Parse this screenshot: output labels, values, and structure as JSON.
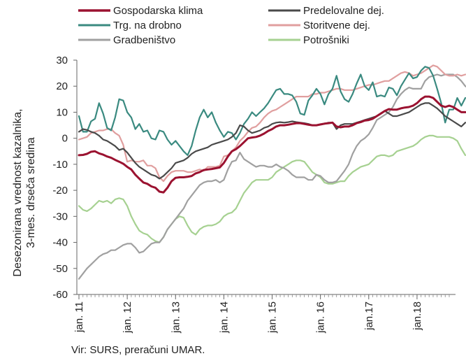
{
  "source_note": "Vir: SURS, preračuni UMAR.",
  "chart_data": {
    "type": "line",
    "ylabel": [
      "Desezonirana vrednost kazalnika,",
      "3-mes. drseča sredina"
    ],
    "xlabel": "",
    "ylim": [
      -60,
      30
    ],
    "yticks": [
      30,
      20,
      10,
      0,
      -10,
      -20,
      -30,
      -40,
      -50,
      -60
    ],
    "x_start": "2011-01",
    "x_end": "2018-09",
    "xticks": [
      {
        "label": "jan. 11",
        "date": "2011-01"
      },
      {
        "label": "jan. 12",
        "date": "2012-01"
      },
      {
        "label": "jan. 13",
        "date": "2013-01"
      },
      {
        "label": "jan. 14",
        "date": "2014-01"
      },
      {
        "label": "jan. 15",
        "date": "2015-01"
      },
      {
        "label": "jan. 16",
        "date": "2016-01"
      },
      {
        "label": "jan.17",
        "date": "2017-01"
      },
      {
        "label": "jan.18",
        "date": "2018-01"
      }
    ],
    "grid": false,
    "legend_position": "top",
    "series": [
      {
        "name": "Gospodarska klima",
        "color": "#9b1230",
        "values": [
          -6.5,
          -6.4,
          -6,
          -5.2,
          -5,
          -5.8,
          -6.3,
          -7,
          -7.5,
          -8.3,
          -9,
          -9.8,
          -11,
          -12,
          -14,
          -15.5,
          -17,
          -17.5,
          -18.5,
          -19,
          -20.5,
          -20.8,
          -19,
          -16.5,
          -15.2,
          -15,
          -15,
          -14.8,
          -14.5,
          -13.5,
          -13,
          -12.2,
          -12,
          -11.8,
          -11.5,
          -11.2,
          -9.5,
          -7,
          -5,
          -4.2,
          -3,
          -1.5,
          0,
          0.3,
          0.5,
          1,
          1.8,
          2.8,
          3.5,
          4.5,
          5,
          5,
          5.2,
          5.5,
          5.8,
          5.8,
          5.5,
          5.2,
          5,
          5,
          5.3,
          5.6,
          5.8,
          6,
          4.5,
          4.2,
          4.5,
          4.5,
          5,
          5.8,
          6.2,
          6.8,
          7,
          7.5,
          8.5,
          9.5,
          10.5,
          11.2,
          11,
          11,
          11.5,
          11.8,
          12,
          12.5,
          13.5,
          15,
          16,
          16,
          15.5,
          14,
          12.5,
          12,
          12.5,
          12,
          11,
          10,
          10
        ]
      },
      {
        "name": "Predelovalne dej.",
        "color": "#4a4a4a",
        "values": [
          2.5,
          3.5,
          3.2,
          2.5,
          2,
          1,
          -0.5,
          -1,
          -2,
          -3,
          -4.5,
          -4,
          -5.5,
          -7.5,
          -9.5,
          -11,
          -12,
          -13,
          -14,
          -14.5,
          -15.5,
          -14.5,
          -13,
          -11.5,
          -9.5,
          -9,
          -8.5,
          -7.5,
          -6,
          -5,
          -4.5,
          -4,
          -3.5,
          -2.5,
          -2,
          -1.5,
          -1,
          -0.5,
          0.5,
          2,
          5,
          4.5,
          3,
          2,
          2.5,
          3,
          4,
          4.5,
          5.5,
          6,
          6.2,
          6,
          6.2,
          6.5,
          6.2,
          6,
          5.8,
          5.5,
          5,
          5,
          5.2,
          5.5,
          6,
          6,
          3.5,
          5,
          5.5,
          5.5,
          5.5,
          6,
          6.5,
          7,
          7.5,
          8,
          8.5,
          9.5,
          10.5,
          9.5,
          8.5,
          8.5,
          9,
          9.5,
          10,
          11,
          12,
          13,
          13.5,
          13.5,
          12.5,
          11.5,
          10,
          8.5,
          7.5,
          6.5,
          5.5,
          4.5,
          6
        ]
      },
      {
        "name": "Trg. na drobno",
        "color": "#3a8a80",
        "values": [
          8.5,
          2.5,
          2.5,
          6.5,
          7.5,
          13.5,
          9.5,
          4,
          3,
          8,
          15,
          14.5,
          10,
          8,
          3.5,
          5.5,
          2.5,
          3,
          0,
          -0.5,
          3,
          2.5,
          -0.5,
          -2.5,
          -1,
          -3,
          -5,
          -6.5,
          -3,
          3,
          8,
          11,
          8,
          10,
          6,
          3,
          0.5,
          2.5,
          2,
          -0.5,
          2,
          5.5,
          7.5,
          10,
          8.5,
          10,
          11.5,
          13.5,
          16,
          18.5,
          19,
          17,
          17,
          16.5,
          14,
          9.5,
          9,
          14.5,
          16.5,
          19,
          17,
          13,
          17,
          19,
          24,
          18,
          15,
          14,
          17,
          21,
          24.5,
          20,
          18.5,
          21.5,
          16,
          16.5,
          16,
          19.5,
          19,
          16.5,
          20,
          22.5,
          25,
          23,
          23.5,
          26,
          27.5,
          27,
          24,
          19,
          13.5,
          6,
          11,
          11,
          15.5,
          12.5,
          15.5
        ]
      },
      {
        "name": "Storitvene dej.",
        "color": "#e09f9f",
        "values": [
          -0.5,
          0,
          0.5,
          2,
          2.5,
          3,
          3,
          3.5,
          3.5,
          2,
          1,
          -2.5,
          -9,
          -8.5,
          -9,
          -9,
          -8.5,
          -10.5,
          -10.5,
          -11.5,
          -15,
          -16.5,
          -14.5,
          -13,
          -12.5,
          -12.5,
          -12.5,
          -13,
          -13,
          -12.5,
          -12,
          -12.5,
          -11,
          -11,
          -11,
          -10.5,
          -7,
          -6.5,
          -5,
          -3.5,
          -1,
          0.5,
          2.5,
          4,
          4.5,
          6,
          8,
          9.5,
          10.5,
          11,
          12,
          13,
          14,
          15,
          16,
          16,
          16,
          16,
          17,
          17,
          17.5,
          17.5,
          18,
          18.5,
          19,
          19,
          18.5,
          18.5,
          18.5,
          19,
          19.5,
          20,
          20.5,
          20.5,
          21,
          21.5,
          22,
          22,
          23,
          24,
          25,
          25.5,
          25,
          24,
          24.5,
          25,
          26,
          27,
          28,
          27.5,
          26,
          24.5,
          24,
          24,
          24.5,
          24,
          24.5
        ]
      },
      {
        "name": "Gradbeništvo",
        "color": "#a0a0a0",
        "values": [
          -54,
          -52,
          -50,
          -48.5,
          -47,
          -45.5,
          -44.5,
          -44,
          -43,
          -43,
          -42,
          -41,
          -40.5,
          -40.5,
          -42,
          -44,
          -43.5,
          -42,
          -40.5,
          -40,
          -40,
          -38,
          -35,
          -33,
          -31,
          -29,
          -27,
          -24,
          -22,
          -20,
          -18,
          -17,
          -16.5,
          -16.5,
          -16,
          -17,
          -16,
          -12,
          -9,
          -8.5,
          -5.5,
          -8,
          -9,
          -10,
          -11,
          -10.5,
          -10.5,
          -11,
          -11,
          -10,
          -11,
          -11.5,
          -12.5,
          -14,
          -15,
          -15,
          -15,
          -16,
          -16,
          -14,
          -14.5,
          -16,
          -17,
          -17,
          -16.5,
          -14.5,
          -12.5,
          -10,
          -6,
          -3,
          -1,
          0,
          1.5,
          4,
          7,
          8,
          9,
          10,
          12,
          15,
          17,
          18.5,
          19.5,
          19,
          19,
          19,
          22,
          23.5,
          24,
          24.5,
          24,
          24.5,
          24.5,
          24.5,
          23.5,
          22,
          20,
          19
        ]
      },
      {
        "name": "Potrošniki",
        "color": "#a6d191",
        "values": [
          -26,
          -27.5,
          -28,
          -27,
          -25.5,
          -24,
          -24.5,
          -24,
          -25,
          -23.5,
          -23,
          -23.5,
          -26,
          -30,
          -33,
          -35.5,
          -36.5,
          -37,
          -38.5,
          -39.5,
          -40,
          -38,
          -35,
          -33,
          -31,
          -30,
          -30.5,
          -33.5,
          -36,
          -37,
          -35,
          -34,
          -33.5,
          -33.5,
          -33,
          -32,
          -30,
          -29,
          -28.5,
          -27,
          -24,
          -21,
          -19,
          -17,
          -16,
          -16,
          -16,
          -16,
          -15,
          -13,
          -12,
          -11,
          -10,
          -9,
          -8.5,
          -8.5,
          -9,
          -11,
          -13,
          -14,
          -15,
          -17,
          -17.5,
          -17.5,
          -17,
          -16.5,
          -16.5,
          -14.5,
          -13,
          -12,
          -11,
          -10.5,
          -10,
          -8.5,
          -7,
          -6.5,
          -6.5,
          -7,
          -6.5,
          -5,
          -4.5,
          -4,
          -3.5,
          -3,
          -2,
          -0.5,
          0.5,
          1,
          1,
          0.5,
          0.5,
          0.5,
          0.5,
          0,
          -1,
          -4,
          -6.5
        ]
      }
    ]
  }
}
